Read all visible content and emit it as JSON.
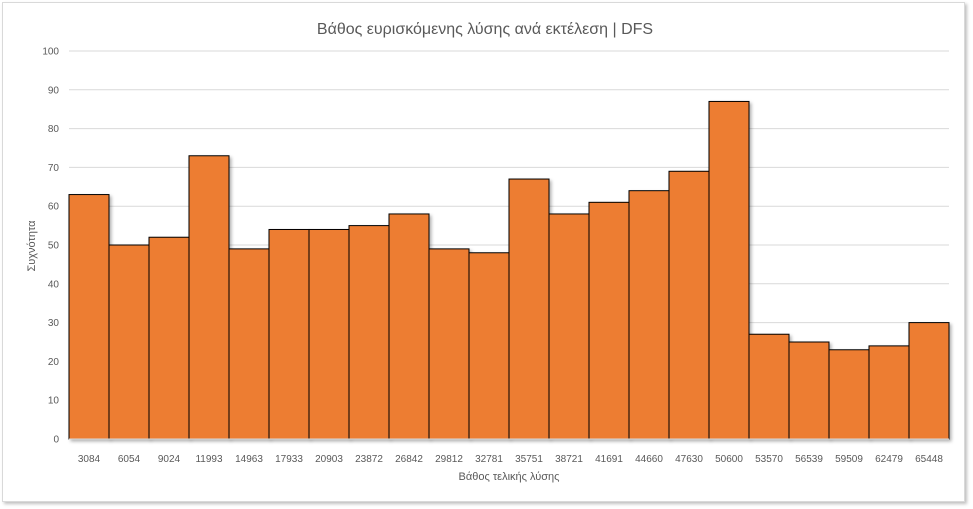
{
  "chart_data": {
    "type": "bar",
    "title": "Βάθος ευρισκόμενης λύσης ανά εκτέλεση | DFS",
    "xlabel": "Βάθος τελικής λύσης",
    "ylabel": "Συχνότητα",
    "ylim": [
      0,
      100
    ],
    "y_ticks": [
      "0",
      "10",
      "20",
      "30",
      "40",
      "50",
      "60",
      "70",
      "80",
      "90",
      "100"
    ],
    "grid": true,
    "legend": "none",
    "categories": [
      "3084",
      "6054",
      "9024",
      "11993",
      "14963",
      "17933",
      "20903",
      "23872",
      "26842",
      "29812",
      "32781",
      "35751",
      "38721",
      "41691",
      "44660",
      "47630",
      "50600",
      "53570",
      "56539",
      "59509",
      "62479",
      "65448"
    ],
    "series": [
      {
        "values": [
          63,
          50,
          52,
          73,
          49,
          54,
          54,
          55,
          58,
          49,
          48,
          67,
          58,
          61,
          64,
          69,
          87,
          27,
          25,
          23,
          24,
          30
        ]
      }
    ],
    "colors": {
      "bar_fill": "#ED7D31",
      "bar_edge": "#000000",
      "grid": "#D9D9D9",
      "text": "#595959"
    }
  }
}
